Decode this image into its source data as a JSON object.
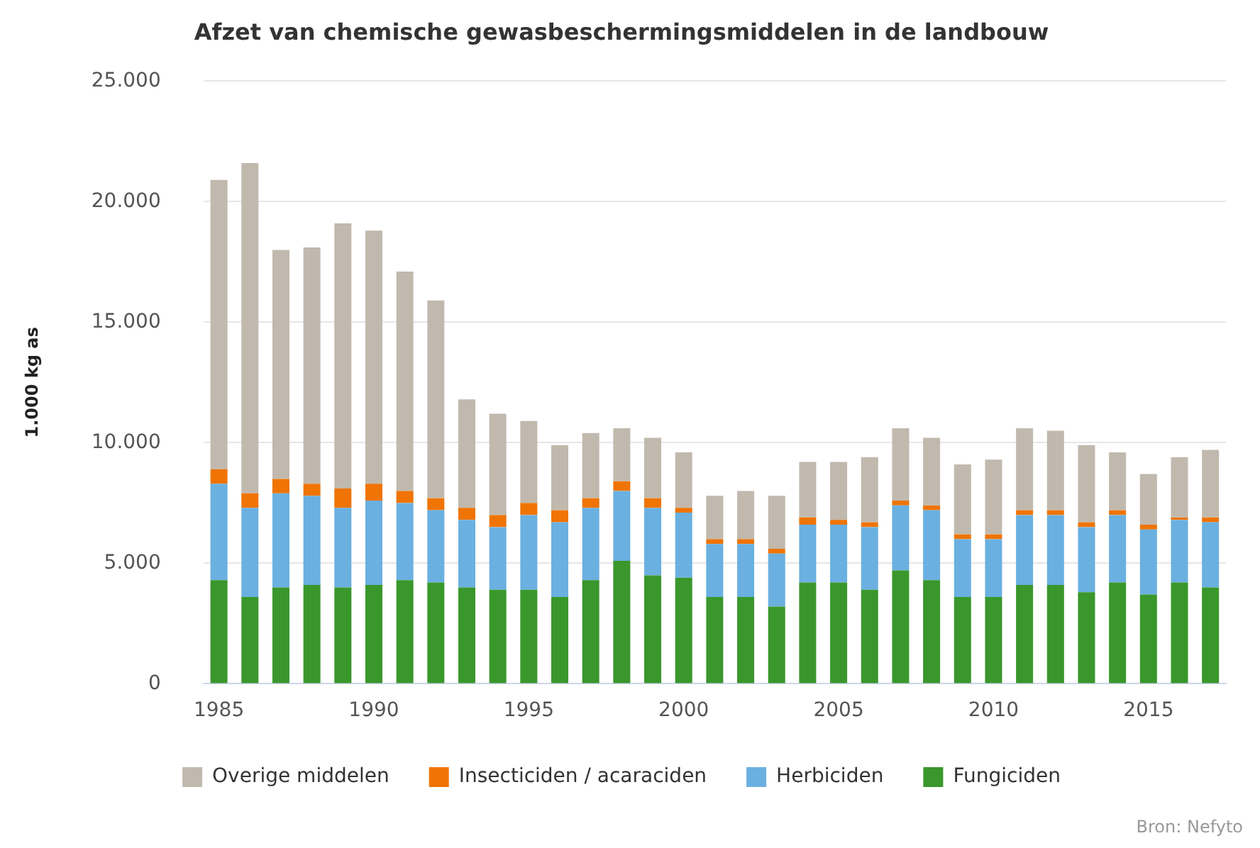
{
  "chart_data": {
    "type": "bar",
    "stacked": true,
    "title": "Afzet van chemische gewasbeschermingsmiddelen in de landbouw",
    "ylabel": "1.000 kg as",
    "categories": [
      "1985",
      null,
      null,
      null,
      null,
      "1990",
      null,
      null,
      null,
      null,
      "1995",
      null,
      null,
      null,
      null,
      "2000",
      null,
      null,
      null,
      null,
      "2005",
      null,
      null,
      null,
      null,
      "2010",
      null,
      null,
      null,
      null,
      "2015",
      null,
      null
    ],
    "series": [
      {
        "name": "Fungiciden",
        "color": "#3a972c",
        "values": [
          4300,
          3600,
          4000,
          4100,
          4000,
          4100,
          4300,
          4200,
          4000,
          3900,
          3900,
          3600,
          4300,
          5100,
          4500,
          4400,
          3600,
          3600,
          3200,
          4200,
          4200,
          3900,
          4700,
          4300,
          3600,
          3600,
          4100,
          4100,
          3800,
          4200,
          3700,
          4200,
          4000
        ]
      },
      {
        "name": "Herbiciden",
        "color": "#6ab0e0",
        "values": [
          4000,
          3700,
          3900,
          3700,
          3300,
          3500,
          3200,
          3000,
          2800,
          2600,
          3100,
          3100,
          3000,
          2900,
          2800,
          2700,
          2200,
          2200,
          2200,
          2400,
          2400,
          2600,
          2700,
          2900,
          2400,
          2400,
          2900,
          2900,
          2700,
          2800,
          2700,
          2600,
          2700
        ]
      },
      {
        "name": "Insecticiden / acaraciden",
        "color": "#ef7404",
        "values": [
          600,
          600,
          600,
          500,
          800,
          700,
          500,
          500,
          500,
          500,
          500,
          500,
          400,
          400,
          400,
          200,
          200,
          200,
          200,
          300,
          200,
          200,
          200,
          200,
          200,
          200,
          200,
          200,
          200,
          200,
          200,
          100,
          200
        ]
      },
      {
        "name": "Overige middelen",
        "color": "#c1b9ae",
        "values": [
          12000,
          13700,
          9500,
          9800,
          11000,
          10500,
          9100,
          8200,
          4500,
          4200,
          3400,
          2700,
          2700,
          2200,
          2500,
          2300,
          1800,
          2000,
          2200,
          2300,
          2400,
          2700,
          3000,
          2800,
          2900,
          3100,
          3400,
          3300,
          3200,
          2400,
          2100,
          2500,
          2800
        ]
      }
    ],
    "ylim": [
      0,
      25000
    ],
    "yticks": [
      {
        "value": 0,
        "label": "0"
      },
      {
        "value": 5000,
        "label": "5.000"
      },
      {
        "value": 10000,
        "label": "10.000"
      },
      {
        "value": 15000,
        "label": "15.000"
      },
      {
        "value": 20000,
        "label": "20.000"
      },
      {
        "value": 25000,
        "label": "25.000"
      }
    ],
    "grid": "y",
    "legend": "bottom",
    "annotations": [
      "Bron: Nefyto"
    ]
  }
}
